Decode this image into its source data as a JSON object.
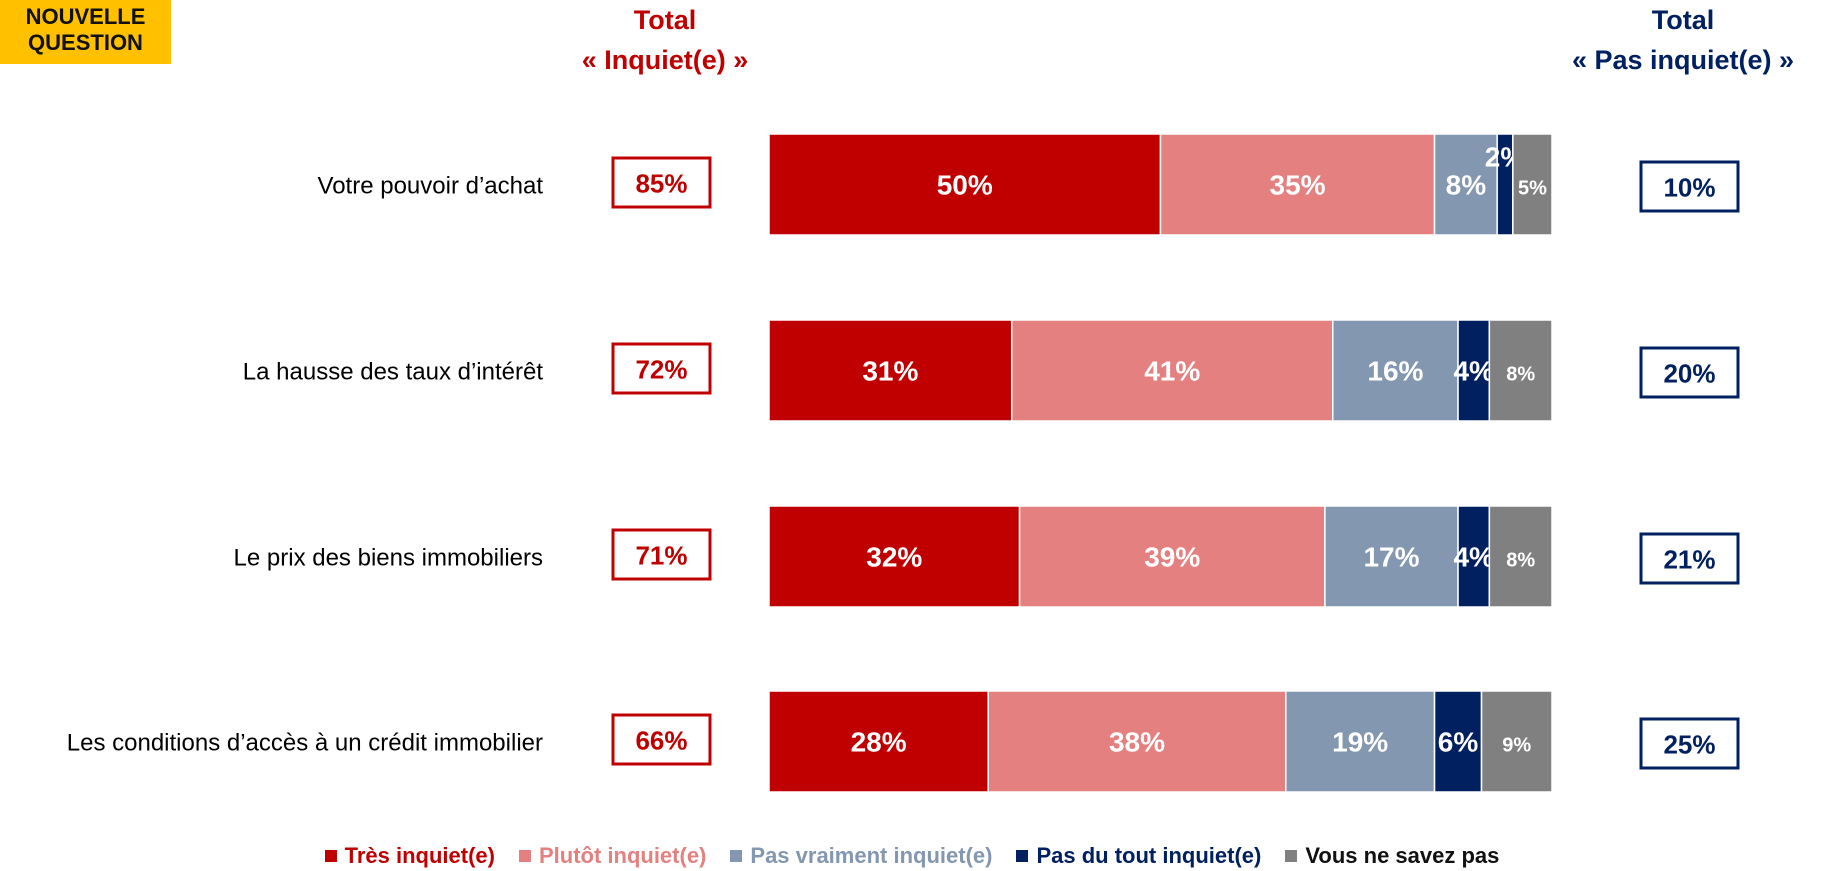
{
  "badge": {
    "line1": "NOUVELLE",
    "line2": "QUESTION"
  },
  "headers": {
    "left": {
      "line1": "Total",
      "line2": "« Inquiet(e) »"
    },
    "right": {
      "line1": "Total",
      "line2": "« Pas inquiet(e) »"
    }
  },
  "colors": {
    "tres": "#C00000",
    "plutot": "#E48080",
    "pas_vraiment": "#8497B0",
    "pas_du_tout": "#002060",
    "nsp": "#808080",
    "total_left": "#C00000",
    "total_right": "#002060",
    "badge": "#FFC000"
  },
  "chart_data": {
    "type": "bar",
    "orientation": "horizontal",
    "stacked": true,
    "categories": [
      "Votre pouvoir d’achat",
      "La hausse des taux d’intérêt",
      "Le prix des biens immobiliers",
      "Les conditions d’accès à un crédit immobilier"
    ],
    "series": [
      {
        "name": "Très inquiet(e)",
        "values": [
          50,
          31,
          32,
          28
        ],
        "labels": [
          "50%",
          "31%",
          "32%",
          "28%"
        ]
      },
      {
        "name": "Plutôt inquiet(e)",
        "values": [
          35,
          41,
          39,
          38
        ],
        "labels": [
          "35%",
          "41%",
          "39%",
          "38%"
        ]
      },
      {
        "name": "Pas vraiment inquiet(e)",
        "values": [
          8,
          16,
          17,
          19
        ],
        "labels": [
          "8%",
          "16%",
          "17%",
          "19%"
        ]
      },
      {
        "name": "Pas du tout inquiet(e)",
        "values": [
          2,
          4,
          4,
          6
        ],
        "labels": [
          "2%",
          "4%",
          "4%",
          "6%"
        ]
      },
      {
        "name": "Vous ne savez pas",
        "values": [
          5,
          8,
          8,
          9
        ],
        "labels": [
          "5%",
          "8%",
          "8%",
          "9%"
        ]
      }
    ],
    "totals_inquiet": [
      "85%",
      "72%",
      "71%",
      "66%"
    ],
    "totals_pas_inquiet": [
      "10%",
      "20%",
      "21%",
      "25%"
    ],
    "legend_position": "bottom"
  }
}
